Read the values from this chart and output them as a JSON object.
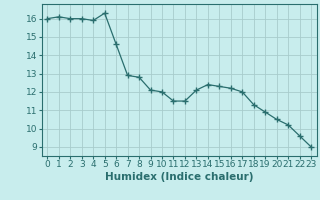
{
  "x": [
    0,
    1,
    2,
    3,
    4,
    5,
    6,
    7,
    8,
    9,
    10,
    11,
    12,
    13,
    14,
    15,
    16,
    17,
    18,
    19,
    20,
    21,
    22,
    23
  ],
  "y": [
    16.0,
    16.1,
    16.0,
    16.0,
    15.9,
    16.3,
    14.6,
    12.9,
    12.8,
    12.1,
    12.0,
    11.5,
    11.5,
    12.1,
    12.4,
    12.3,
    12.2,
    12.0,
    11.3,
    10.9,
    10.5,
    10.2,
    9.6,
    9.0
  ],
  "line_color": "#2a6e6e",
  "marker": "+",
  "marker_size": 4,
  "bg_color": "#c8eded",
  "grid_color": "#a8cccc",
  "xlabel": "Humidex (Indice chaleur)",
  "xlim": [
    -0.5,
    23.5
  ],
  "ylim": [
    8.5,
    16.8
  ],
  "yticks": [
    9,
    10,
    11,
    12,
    13,
    14,
    15,
    16
  ],
  "xticks": [
    0,
    1,
    2,
    3,
    4,
    5,
    6,
    7,
    8,
    9,
    10,
    11,
    12,
    13,
    14,
    15,
    16,
    17,
    18,
    19,
    20,
    21,
    22,
    23
  ],
  "xlabel_fontsize": 7.5,
  "tick_fontsize": 6.5
}
